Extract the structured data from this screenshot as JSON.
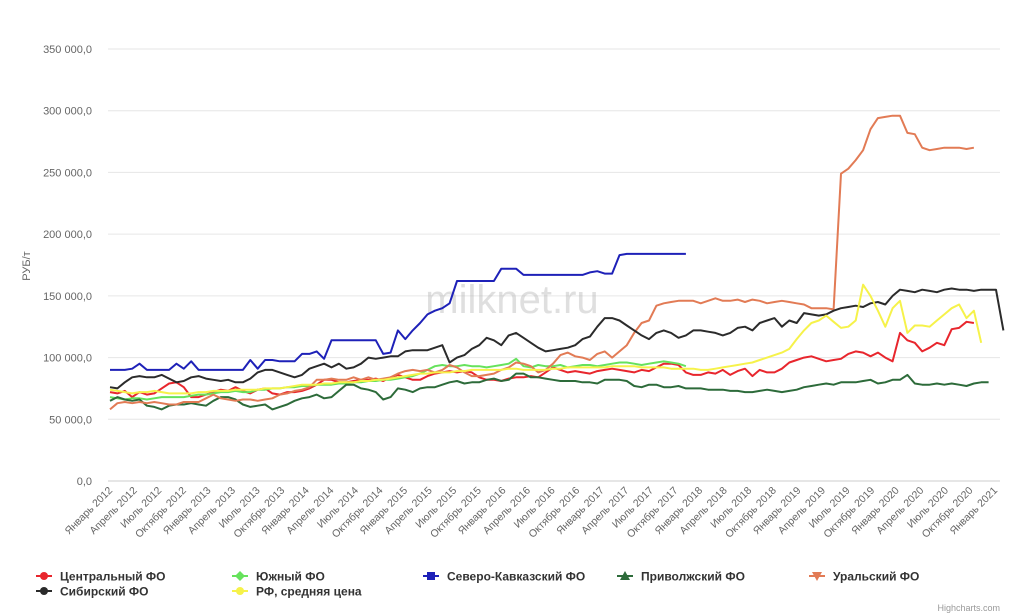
{
  "chart_data": {
    "type": "line",
    "ylabel": "РУБ/т",
    "y_ticks": [
      "0,0",
      "50 000,0",
      "100 000,0",
      "150 000,0",
      "200 000,0",
      "250 000,0",
      "300 000,0",
      "350 000,0"
    ],
    "ylim": [
      0,
      350000
    ],
    "grid": true,
    "legend_position": "bottom",
    "watermark": "milknet.ru",
    "credit": "Highcharts.com",
    "x_labels": [
      "Январь 2012",
      "Апрель 2012",
      "Июль 2012",
      "Октябрь 2012",
      "Январь 2013",
      "Апрель 2013",
      "Июль 2013",
      "Октябрь 2013",
      "Январь 2014",
      "Апрель 2014",
      "Июль 2014",
      "Октябрь 2014",
      "Январь 2015",
      "Апрель 2015",
      "Июль 2015",
      "Октябрь 2015",
      "Январь 2016",
      "Апрель 2016",
      "Июль 2016",
      "Октябрь 2016",
      "Январь 2017",
      "Апрель 2017",
      "Июль 2017",
      "Октябрь 2017",
      "Январь 2018",
      "Апрель 2018",
      "Июль 2018",
      "Октябрь 2018",
      "Январь 2019",
      "Апрель 2019",
      "Июль 2019",
      "Октябрь 2019",
      "Январь 2020",
      "Апрель 2020",
      "Июль 2020",
      "Октябрь 2020",
      "Январь 2021"
    ],
    "series": [
      {
        "name": "Центральный ФО",
        "color": "#e8262d",
        "marker": "circle",
        "values": [
          72000,
          71000,
          73000,
          68000,
          72000,
          70000,
          71000,
          75000,
          79000,
          80000,
          76000,
          68000,
          68000,
          70000,
          72000,
          74000,
          73000,
          76000,
          73000,
          71000,
          74000,
          75000,
          71000,
          70000,
          72000,
          72000,
          73000,
          75000,
          78000,
          82000,
          82000,
          80000,
          80000,
          81000,
          82000,
          82000,
          83000,
          81000,
          84000,
          86000,
          84000,
          82000,
          82000,
          85000,
          87000,
          88000,
          89000,
          88000,
          89000,
          88000,
          84000,
          82000,
          82000,
          81000,
          83000,
          84000,
          84000,
          85000,
          84000,
          88000,
          92000,
          90000,
          88000,
          89000,
          88000,
          87000,
          89000,
          90000,
          91000,
          90000,
          89000,
          88000,
          90000,
          89000,
          92000,
          95000,
          95000,
          94000,
          88000,
          86000,
          86000,
          88000,
          87000,
          90000,
          86000,
          89000,
          91000,
          85000,
          90000,
          88000,
          88000,
          91000,
          96000,
          98000,
          100000,
          101000,
          99000,
          97000,
          98000,
          99000,
          103000,
          105000,
          104000,
          101000,
          104000,
          100000,
          97000,
          120000,
          114000,
          112000,
          105000,
          108000,
          112000,
          110000,
          123000,
          124000,
          129000,
          128000
        ]
      },
      {
        "name": "Южный ФО",
        "color": "#66e25c",
        "marker": "diamond",
        "values": [
          68000,
          67000,
          66000,
          67000,
          67000,
          66000,
          67000,
          68000,
          68000,
          68000,
          68000,
          69000,
          70000,
          70000,
          71000,
          72000,
          72000,
          73000,
          72000,
          72000,
          74000,
          74000,
          75000,
          75000,
          76000,
          76000,
          77000,
          77000,
          78000,
          78000,
          78000,
          79000,
          79000,
          80000,
          80000,
          81000,
          81000,
          82000,
          82000,
          83000,
          84000,
          85000,
          87000,
          90000,
          93000,
          94000,
          93000,
          93000,
          94000,
          93000,
          93000,
          92000,
          93000,
          94000,
          95000,
          99000,
          93000,
          92000,
          94000,
          93000,
          93000,
          94000,
          92000,
          93000,
          94000,
          94000,
          93000,
          94000,
          95000,
          96000,
          96000,
          95000,
          94000,
          95000,
          96000,
          97000,
          96000,
          95000,
          93000
        ]
      },
      {
        "name": "Северо-Кавказский ФО",
        "color": "#1e21b8",
        "marker": "square",
        "values": [
          90000,
          90000,
          90000,
          91000,
          95000,
          90000,
          90000,
          90000,
          90000,
          95000,
          91000,
          97000,
          90000,
          90000,
          90000,
          90000,
          90000,
          90000,
          90000,
          98000,
          91000,
          98000,
          98000,
          97000,
          97000,
          97000,
          103000,
          103000,
          105000,
          99000,
          114000,
          114000,
          114000,
          114000,
          114000,
          114000,
          114000,
          103000,
          104000,
          122000,
          115000,
          122000,
          128000,
          135000,
          138000,
          140000,
          144000,
          162000,
          162000,
          162000,
          162000,
          162000,
          162000,
          172000,
          172000,
          172000,
          167000,
          167000,
          167000,
          167000,
          167000,
          167000,
          167000,
          167000,
          167000,
          169000,
          170000,
          168000,
          168000,
          183000,
          184000,
          184000,
          184000,
          184000,
          184000,
          184000,
          184000,
          184000,
          184000
        ]
      },
      {
        "name": "Приволжский ФО",
        "color": "#2d6b3a",
        "marker": "triangle",
        "values": [
          65000,
          68000,
          66000,
          65000,
          66000,
          61000,
          60000,
          58000,
          61000,
          62000,
          62000,
          63000,
          62000,
          61000,
          65000,
          68000,
          68000,
          66000,
          62000,
          60000,
          61000,
          62000,
          58000,
          60000,
          62000,
          65000,
          67000,
          68000,
          70000,
          67000,
          68000,
          73000,
          78000,
          78000,
          75000,
          74000,
          72000,
          66000,
          68000,
          75000,
          74000,
          72000,
          75000,
          76000,
          76000,
          78000,
          80000,
          81000,
          79000,
          80000,
          80000,
          82000,
          83000,
          81000,
          82000,
          87000,
          87000,
          84000,
          84000,
          83000,
          82000,
          81000,
          81000,
          81000,
          80000,
          80000,
          79000,
          82000,
          82000,
          82000,
          81000,
          77000,
          76000,
          78000,
          78000,
          76000,
          76000,
          77000,
          75000,
          75000,
          75000,
          74000,
          74000,
          74000,
          73000,
          73000,
          72000,
          72000,
          73000,
          74000,
          73000,
          72000,
          73000,
          74000,
          76000,
          77000,
          78000,
          79000,
          78000,
          80000,
          80000,
          80000,
          81000,
          82000,
          79000,
          80000,
          82000,
          82000,
          86000,
          79000,
          78000,
          78000,
          79000,
          78000,
          79000,
          78000,
          77000,
          79000,
          80000,
          80000
        ]
      },
      {
        "name": "Уральский ФО",
        "color": "#e27b55",
        "marker": "triangle-down",
        "values": [
          58000,
          63000,
          64000,
          63000,
          64000,
          63000,
          64000,
          63000,
          62000,
          62000,
          64000,
          64000,
          64000,
          67000,
          70000,
          67000,
          66000,
          65000,
          66000,
          66000,
          65000,
          66000,
          67000,
          70000,
          71000,
          73000,
          74000,
          76000,
          82000,
          82000,
          83000,
          82000,
          82000,
          84000,
          82000,
          84000,
          82000,
          83000,
          84000,
          87000,
          89000,
          90000,
          89000,
          90000,
          88000,
          90000,
          94000,
          92000,
          88000,
          85000,
          85000,
          86000,
          87000,
          90000,
          92000,
          96000,
          95000,
          93000,
          88000,
          90000,
          95000,
          102000,
          104000,
          101000,
          100000,
          98000,
          103000,
          105000,
          100000,
          105000,
          110000,
          120000,
          128000,
          130000,
          142000,
          144000,
          145000,
          146000,
          146000,
          146000,
          144000,
          146000,
          148000,
          146000,
          146000,
          147000,
          145000,
          147000,
          146000,
          144000,
          145000,
          146000,
          145000,
          144000,
          143000,
          140000,
          140000,
          140000,
          139000,
          249000,
          253000,
          260000,
          268000,
          285000,
          294000,
          295000,
          296000,
          296000,
          282000,
          281000,
          270000,
          268000,
          269000,
          270000,
          270000,
          270000,
          269000,
          270000
        ]
      },
      {
        "name": "Сибирский ФО",
        "color": "#2b2b2b",
        "marker": "circle",
        "values": [
          76000,
          75000,
          80000,
          84000,
          85000,
          84000,
          84000,
          86000,
          83000,
          80000,
          81000,
          84000,
          85000,
          83000,
          82000,
          81000,
          82000,
          80000,
          80000,
          83000,
          88000,
          90000,
          90000,
          88000,
          86000,
          84000,
          86000,
          91000,
          93000,
          95000,
          92000,
          95000,
          91000,
          92000,
          95000,
          100000,
          99000,
          100000,
          101000,
          101000,
          105000,
          106000,
          106000,
          106000,
          108000,
          110000,
          96000,
          100000,
          102000,
          107000,
          110000,
          116000,
          114000,
          110000,
          118000,
          120000,
          116000,
          112000,
          108000,
          105000,
          106000,
          107000,
          108000,
          110000,
          115000,
          117000,
          125000,
          132000,
          132000,
          130000,
          126000,
          122000,
          118000,
          115000,
          120000,
          122000,
          120000,
          116000,
          118000,
          122000,
          122000,
          121000,
          120000,
          118000,
          120000,
          124000,
          125000,
          122000,
          128000,
          130000,
          132000,
          125000,
          130000,
          128000,
          136000,
          135000,
          134000,
          135000,
          138000,
          140000,
          141000,
          142000,
          141000,
          144000,
          145000,
          143000,
          150000,
          155000,
          154000,
          153000,
          155000,
          154000,
          153000,
          155000,
          156000,
          155000,
          155000,
          154000,
          155000,
          155000,
          155000,
          122000
        ]
      },
      {
        "name": "РФ, средняя цена",
        "color": "#f6f24a",
        "marker": "circle",
        "values": [
          74000,
          73000,
          72000,
          71000,
          72000,
          72000,
          73000,
          72000,
          71000,
          71000,
          71000,
          71000,
          72000,
          72000,
          73000,
          73000,
          73000,
          74000,
          74000,
          74000,
          74000,
          75000,
          75000,
          75000,
          76000,
          77000,
          78000,
          78000,
          78000,
          79000,
          79000,
          80000,
          80000,
          80000,
          81000,
          81000,
          82000,
          82000,
          83000,
          84000,
          85000,
          86000,
          87000,
          87000,
          88000,
          88000,
          88000,
          89000,
          89000,
          90000,
          90000,
          90000,
          90000,
          90000,
          91000,
          91000,
          90000,
          90000,
          90000,
          90000,
          91000,
          91000,
          92000,
          92000,
          92000,
          92000,
          92000,
          92000,
          93000,
          93000,
          93000,
          93000,
          92000,
          92000,
          92000,
          92000,
          91000,
          91000,
          91000,
          91000,
          90000,
          90000,
          91000,
          92000,
          93000,
          94000,
          95000,
          96000,
          98000,
          100000,
          102000,
          104000,
          107000,
          115000,
          122000,
          128000,
          130000,
          134000,
          129000,
          124000,
          125000,
          130000,
          159000,
          150000,
          138000,
          125000,
          140000,
          146000,
          120000,
          126000,
          126000,
          125000,
          130000,
          135000,
          140000,
          143000,
          132000,
          138000,
          112000
        ]
      }
    ]
  }
}
